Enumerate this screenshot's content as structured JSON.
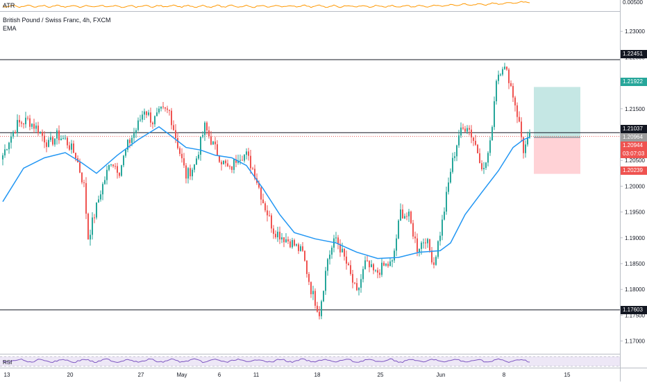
{
  "indicators": {
    "atr_label": "ATR",
    "rsi_label": "RSI",
    "atr_value": "0.00500",
    "ema_label": "EMA"
  },
  "main": {
    "title": "British Pound / Swiss Franc, 4h, FXCM"
  },
  "colors": {
    "up": "#26a69a",
    "down": "#ef5350",
    "ema": "#2196f3",
    "atr": "#ff9800",
    "rsi": "#7e57c2",
    "tp_zone": "#b2dfdb",
    "sl_zone": "#ffcdd2"
  },
  "chart_data": {
    "type": "candlestick",
    "title": "British Pound / Swiss Franc, 4h, FXCM",
    "symbol": "GBPCHF",
    "timeframe": "4h",
    "y_ticks": [
      "1.23000",
      "1.22500",
      "1.22000",
      "1.21500",
      "1.21000",
      "1.20500",
      "1.20000",
      "1.19500",
      "1.19000",
      "1.18500",
      "1.18000",
      "1.17500",
      "1.17000"
    ],
    "ylim": [
      1.1665,
      1.2375
    ],
    "x_ticks": [
      "13",
      "20",
      "27",
      "May",
      "6",
      "11",
      "18",
      "25",
      "Jun",
      "8",
      "15"
    ],
    "horizontal_levels": [
      1.22451,
      1.17603
    ],
    "price_labels": {
      "resistance": "1.22451",
      "take_profit": "1.21922",
      "level": "1.21037",
      "close": "1.20964",
      "entry": "1.20944",
      "countdown": "03:07:03",
      "stop_loss": "1.20239",
      "support": "1.17603",
      "atr_axis": "0.00500"
    },
    "position": {
      "entry": 1.20944,
      "take_profit": 1.21922,
      "stop_loss": 1.20239
    },
    "waypoints": [
      {
        "i": 0,
        "p": 1.206
      },
      {
        "i": 3,
        "p": 1.209
      },
      {
        "i": 7,
        "p": 1.212
      },
      {
        "i": 12,
        "p": 1.2128
      },
      {
        "i": 17,
        "p": 1.211
      },
      {
        "i": 22,
        "p": 1.208
      },
      {
        "i": 26,
        "p": 1.2098
      },
      {
        "i": 30,
        "p": 1.209
      },
      {
        "i": 35,
        "p": 1.206
      },
      {
        "i": 39,
        "p": 1.2
      },
      {
        "i": 41,
        "p": 1.19
      },
      {
        "i": 43,
        "p": 1.193
      },
      {
        "i": 47,
        "p": 1.199
      },
      {
        "i": 52,
        "p": 1.205
      },
      {
        "i": 56,
        "p": 1.203
      },
      {
        "i": 60,
        "p": 1.208
      },
      {
        "i": 64,
        "p": 1.211
      },
      {
        "i": 68,
        "p": 1.215
      },
      {
        "i": 72,
        "p": 1.2125
      },
      {
        "i": 76,
        "p": 1.2145
      },
      {
        "i": 80,
        "p": 1.2145
      },
      {
        "i": 84,
        "p": 1.208
      },
      {
        "i": 88,
        "p": 1.202
      },
      {
        "i": 92,
        "p": 1.204
      },
      {
        "i": 97,
        "p": 1.2115
      },
      {
        "i": 101,
        "p": 1.208
      },
      {
        "i": 105,
        "p": 1.205
      },
      {
        "i": 109,
        "p": 1.203
      },
      {
        "i": 113,
        "p": 1.206
      },
      {
        "i": 117,
        "p": 1.206
      },
      {
        "i": 121,
        "p": 1.2025
      },
      {
        "i": 125,
        "p": 1.197
      },
      {
        "i": 130,
        "p": 1.1915
      },
      {
        "i": 135,
        "p": 1.19
      },
      {
        "i": 139,
        "p": 1.189
      },
      {
        "i": 144,
        "p": 1.187
      },
      {
        "i": 148,
        "p": 1.18
      },
      {
        "i": 152,
        "p": 1.1755
      },
      {
        "i": 156,
        "p": 1.186
      },
      {
        "i": 160,
        "p": 1.19
      },
      {
        "i": 165,
        "p": 1.185
      },
      {
        "i": 170,
        "p": 1.179
      },
      {
        "i": 174,
        "p": 1.185
      },
      {
        "i": 179,
        "p": 1.183
      },
      {
        "i": 183,
        "p": 1.1845
      },
      {
        "i": 187,
        "p": 1.185
      },
      {
        "i": 191,
        "p": 1.195
      },
      {
        "i": 195,
        "p": 1.194
      },
      {
        "i": 199,
        "p": 1.188
      },
      {
        "i": 203,
        "p": 1.19
      },
      {
        "i": 207,
        "p": 1.185
      },
      {
        "i": 211,
        "p": 1.193
      },
      {
        "i": 215,
        "p": 1.203
      },
      {
        "i": 219,
        "p": 1.21
      },
      {
        "i": 223,
        "p": 1.212
      },
      {
        "i": 227,
        "p": 1.208
      },
      {
        "i": 231,
        "p": 1.203
      },
      {
        "i": 234,
        "p": 1.208
      },
      {
        "i": 237,
        "p": 1.221
      },
      {
        "i": 240,
        "p": 1.2235
      },
      {
        "i": 243,
        "p": 1.221
      },
      {
        "i": 246,
        "p": 1.216
      },
      {
        "i": 248,
        "p": 1.212
      },
      {
        "i": 250,
        "p": 1.207
      },
      {
        "i": 253,
        "p": 1.2094
      }
    ],
    "ema_points": [
      {
        "i": 0,
        "p": 1.197
      },
      {
        "i": 10,
        "p": 1.2035
      },
      {
        "i": 20,
        "p": 1.2055
      },
      {
        "i": 30,
        "p": 1.2065
      },
      {
        "i": 38,
        "p": 1.2045
      },
      {
        "i": 45,
        "p": 1.2025
      },
      {
        "i": 55,
        "p": 1.206
      },
      {
        "i": 65,
        "p": 1.209
      },
      {
        "i": 75,
        "p": 1.2115
      },
      {
        "i": 80,
        "p": 1.21
      },
      {
        "i": 88,
        "p": 1.2075
      },
      {
        "i": 95,
        "p": 1.207
      },
      {
        "i": 102,
        "p": 1.206
      },
      {
        "i": 110,
        "p": 1.2055
      },
      {
        "i": 117,
        "p": 1.204
      },
      {
        "i": 125,
        "p": 1.1995
      },
      {
        "i": 133,
        "p": 1.1945
      },
      {
        "i": 140,
        "p": 1.191
      },
      {
        "i": 150,
        "p": 1.1898
      },
      {
        "i": 160,
        "p": 1.189
      },
      {
        "i": 170,
        "p": 1.1872
      },
      {
        "i": 180,
        "p": 1.186
      },
      {
        "i": 190,
        "p": 1.1862
      },
      {
        "i": 200,
        "p": 1.1872
      },
      {
        "i": 210,
        "p": 1.1875
      },
      {
        "i": 215,
        "p": 1.189
      },
      {
        "i": 222,
        "p": 1.1945
      },
      {
        "i": 230,
        "p": 1.1988
      },
      {
        "i": 238,
        "p": 1.203
      },
      {
        "i": 245,
        "p": 1.2075
      },
      {
        "i": 250,
        "p": 1.209
      },
      {
        "i": 253,
        "p": 1.2095
      }
    ]
  }
}
